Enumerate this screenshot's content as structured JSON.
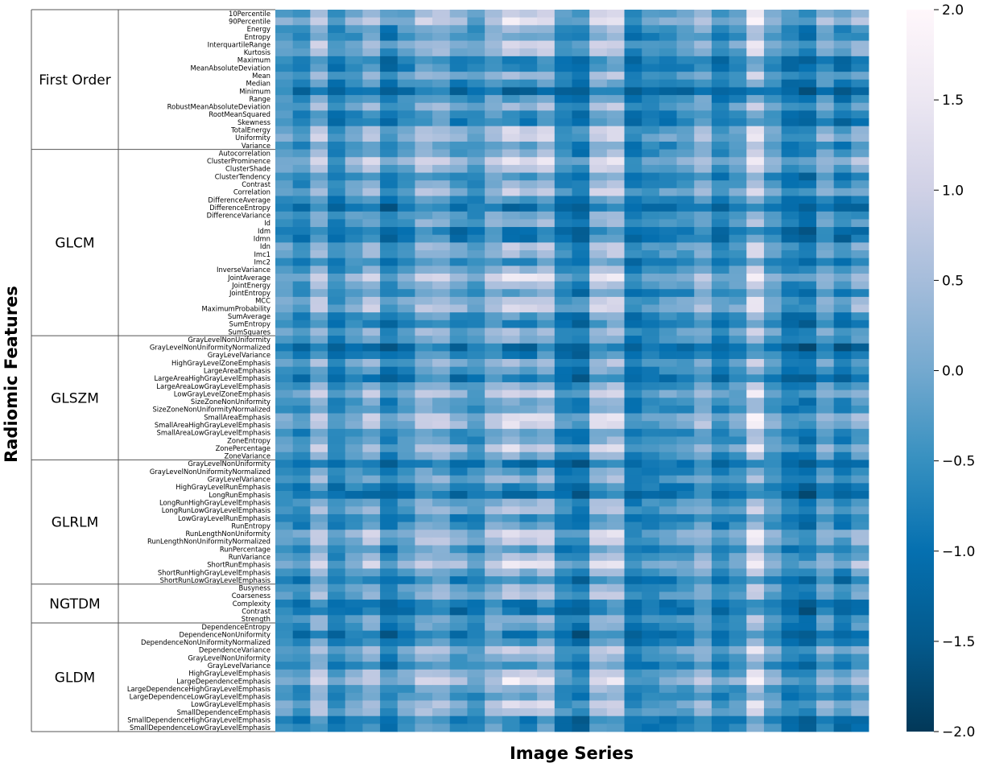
{
  "chart_data": {
    "type": "heatmap",
    "xlabel": "Image Series",
    "ylabel": "Radiomic Features",
    "n_series": 34,
    "colormap": "PuBu_r",
    "colors": {
      "low": "#023858",
      "mid": "#3690c0",
      "high": "#fff7fb"
    },
    "colorbar": {
      "range": [
        -2.0,
        2.0
      ],
      "ticks": [
        "2.0",
        "1.5",
        "1.0",
        "0.5",
        "0.0",
        "−0.5",
        "−1.0",
        "−1.5",
        "−2.0"
      ]
    },
    "groups": [
      {
        "name": "First Order",
        "features": [
          "10Percentile",
          "90Percentile",
          "Energy",
          "Entropy",
          "InterquartileRange",
          "Kurtosis",
          "Maximum",
          "MeanAbsoluteDeviation",
          "Mean",
          "Median",
          "Minimum",
          "Range",
          "RobustMeanAbsoluteDeviation",
          "RootMeanSquared",
          "Skewness",
          "TotalEnergy",
          "Uniformity",
          "Variance"
        ]
      },
      {
        "name": "GLCM",
        "features": [
          "Autocorrelation",
          "ClusterProminence",
          "ClusterShade",
          "ClusterTendency",
          "Contrast",
          "Correlation",
          "DifferenceAverage",
          "DifferenceEntropy",
          "DifferenceVariance",
          "Id",
          "Idm",
          "Idmn",
          "Idn",
          "Imc1",
          "Imc2",
          "InverseVariance",
          "JointAverage",
          "JointEnergy",
          "JointEntropy",
          "MCC",
          "MaximumProbability",
          "SumAverage",
          "SumEntropy",
          "SumSquares"
        ]
      },
      {
        "name": "GLSZM",
        "features": [
          "GrayLevelNonUniformity",
          "GrayLevelNonUniformityNormalized",
          "GrayLevelVariance",
          "HighGrayLevelZoneEmphasis",
          "LargeAreaEmphasis",
          "LargeAreaHighGrayLevelEmphasis",
          "LargeAreaLowGrayLevelEmphasis",
          "LowGrayLevelZoneEmphasis",
          "SizeZoneNonUniformity",
          "SizeZoneNonUniformityNormalized",
          "SmallAreaEmphasis",
          "SmallAreaHighGrayLevelEmphasis",
          "SmallAreaLowGrayLevelEmphasis",
          "ZoneEntropy",
          "ZonePercentage",
          "ZoneVariance"
        ]
      },
      {
        "name": "GLRLM",
        "features": [
          "GrayLevelNonUniformity",
          "GrayLevelNonUniformityNormalized",
          "GrayLevelVariance",
          "HighGrayLevelRunEmphasis",
          "LongRunEmphasis",
          "LongRunHighGrayLevelEmphasis",
          "LongRunLowGrayLevelEmphasis",
          "LowGrayLevelRunEmphasis",
          "RunEntropy",
          "RunLengthNonUniformity",
          "RunLengthNonUniformityNormalized",
          "RunPercentage",
          "RunVariance",
          "ShortRunEmphasis",
          "ShortRunHighGrayLevelEmphasis",
          "ShortRunLowGrayLevelEmphasis"
        ]
      },
      {
        "name": "NGTDM",
        "features": [
          "Busyness",
          "Coarseness",
          "Complexity",
          "Contrast",
          "Strength"
        ]
      },
      {
        "name": "GLDM",
        "features": [
          "DependenceEntropy",
          "DependenceNonUniformity",
          "DependenceNonUniformityNormalized",
          "DependenceVariance",
          "GrayLevelNonUniformity",
          "GrayLevelVariance",
          "HighGrayLevelEmphasis",
          "LargeDependenceEmphasis",
          "LargeDependenceHighGrayLevelEmphasis",
          "LargeDependenceLowGrayLevelEmphasis",
          "LowGrayLevelEmphasis",
          "SmallDependenceEmphasis",
          "SmallDependenceHighGrayLevelEmphasis",
          "SmallDependenceLowGrayLevelEmphasis"
        ]
      }
    ],
    "columns": [
      {
        "base": -0.3,
        "amp": 0.35
      },
      {
        "base": -0.6,
        "amp": 0.45
      },
      {
        "base": 0.2,
        "amp": 0.8
      },
      {
        "base": -0.7,
        "amp": 0.4
      },
      {
        "base": -0.3,
        "amp": 0.55
      },
      {
        "base": 0.0,
        "amp": 0.9
      },
      {
        "base": -0.8,
        "amp": 0.6
      },
      {
        "base": -0.4,
        "amp": 0.55
      },
      {
        "base": 0.1,
        "amp": 0.7
      },
      {
        "base": 0.1,
        "amp": 0.7
      },
      {
        "base": -0.4,
        "amp": 0.8
      },
      {
        "base": -0.5,
        "amp": 0.4
      },
      {
        "base": 0.1,
        "amp": 0.6
      },
      {
        "base": 0.2,
        "amp": 1.3
      },
      {
        "base": 0.0,
        "amp": 1.2
      },
      {
        "base": 0.3,
        "amp": 1.0
      },
      {
        "base": -0.7,
        "amp": 0.5
      },
      {
        "base": -0.9,
        "amp": 0.6
      },
      {
        "base": 0.3,
        "amp": 0.9
      },
      {
        "base": 0.4,
        "amp": 0.9
      },
      {
        "base": -0.8,
        "amp": 0.4
      },
      {
        "base": -0.6,
        "amp": 0.4
      },
      {
        "base": -0.5,
        "amp": 0.5
      },
      {
        "base": -0.4,
        "amp": 0.6
      },
      {
        "base": 0.0,
        "amp": 0.6
      },
      {
        "base": -0.7,
        "amp": 0.5
      },
      {
        "base": -0.4,
        "amp": 0.5
      },
      {
        "base": 0.6,
        "amp": 1.1
      },
      {
        "base": -0.3,
        "amp": 0.5
      },
      {
        "base": -0.8,
        "amp": 0.5
      },
      {
        "base": -0.9,
        "amp": 0.6
      },
      {
        "base": -0.2,
        "amp": 0.6
      },
      {
        "base": -0.7,
        "amp": 0.7
      },
      {
        "base": -0.3,
        "amp": 0.9
      }
    ]
  }
}
